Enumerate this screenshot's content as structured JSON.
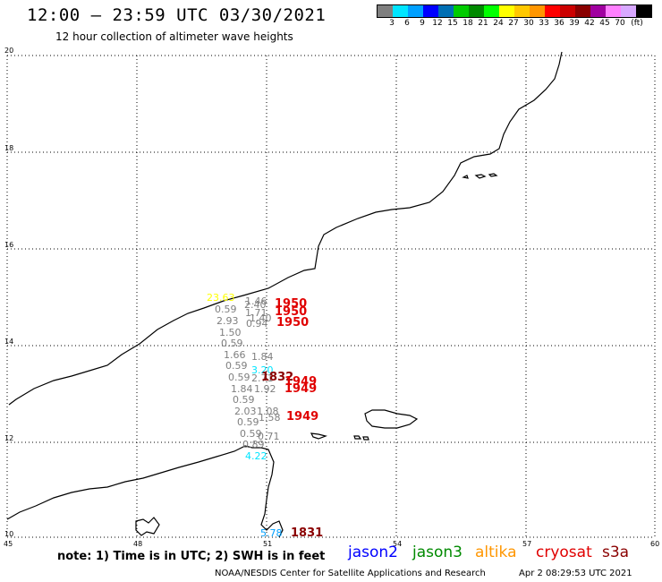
{
  "title": "12:00 – 23:59 UTC 03/30/2021",
  "subtitle": "12 hour collection of altimeter wave heights",
  "legend": {
    "colors": [
      "#7f7f7f",
      "#00e5ff",
      "#00a0ff",
      "#0000ff",
      "#006fb4",
      "#00cc00",
      "#008a00",
      "#00ff00",
      "#ffff00",
      "#ffc800",
      "#ff9600",
      "#ff0000",
      "#cc0000",
      "#8a0000",
      "#a000a0",
      "#ff80ff",
      "#d8a8ff",
      "#000000"
    ],
    "ticks": [
      "3",
      "6",
      "9",
      "12",
      "15",
      "18",
      "21",
      "24",
      "27",
      "30",
      "33",
      "36",
      "39",
      "42",
      "45",
      "70",
      "(ft)"
    ]
  },
  "axes": {
    "lat_labels": [
      "20",
      "18",
      "16",
      "14",
      "12",
      "10"
    ],
    "lon_labels": [
      "45",
      "48",
      "51",
      "54",
      "57",
      "60"
    ]
  },
  "observations": [
    {
      "text": "23.63",
      "color": "#ffff00"
    },
    {
      "text": "1.46",
      "color": "#7f7f7f"
    },
    {
      "text": "2.40",
      "color": "#7f7f7f"
    },
    {
      "text": "0.59",
      "color": "#7f7f7f"
    },
    {
      "text": "1.71",
      "color": "#7f7f7f"
    },
    {
      "text": "1.40",
      "color": "#7f7f7f"
    },
    {
      "text": "2.93",
      "color": "#7f7f7f"
    },
    {
      "text": "0.94",
      "color": "#7f7f7f"
    },
    {
      "text": "1.50",
      "color": "#7f7f7f"
    },
    {
      "text": "0.59",
      "color": "#7f7f7f"
    },
    {
      "text": "1.66",
      "color": "#7f7f7f"
    },
    {
      "text": "1.84",
      "color": "#7f7f7f"
    },
    {
      "text": "0.59",
      "color": "#7f7f7f"
    },
    {
      "text": "3.20",
      "color": "#00e5ff"
    },
    {
      "text": "0.59",
      "color": "#7f7f7f"
    },
    {
      "text": "2.71",
      "color": "#7f7f7f"
    },
    {
      "text": "1.84",
      "color": "#7f7f7f"
    },
    {
      "text": "1.92",
      "color": "#7f7f7f"
    },
    {
      "text": "0.59",
      "color": "#7f7f7f"
    },
    {
      "text": "2.03",
      "color": "#7f7f7f"
    },
    {
      "text": "1.08",
      "color": "#7f7f7f"
    },
    {
      "text": "0.59",
      "color": "#7f7f7f"
    },
    {
      "text": "1.58",
      "color": "#7f7f7f"
    },
    {
      "text": "0.59",
      "color": "#7f7f7f"
    },
    {
      "text": "0.71",
      "color": "#7f7f7f"
    },
    {
      "text": "0.89",
      "color": "#7f7f7f"
    },
    {
      "text": "4.22",
      "color": "#00e5ff"
    },
    {
      "text": "5.78",
      "color": "#00a0ff"
    }
  ],
  "times": [
    {
      "text": "1950",
      "color": "#e00000"
    },
    {
      "text": "1950",
      "color": "#e00000"
    },
    {
      "text": "1950",
      "color": "#e00000"
    },
    {
      "text": "1832",
      "color": "#8a0000"
    },
    {
      "text": "1949",
      "color": "#e00000"
    },
    {
      "text": "1949",
      "color": "#e00000"
    },
    {
      "text": "1949",
      "color": "#e00000"
    },
    {
      "text": "1831",
      "color": "#8a0000"
    }
  ],
  "note": "note: 1) Time is in UTC; 2) SWH is in feet",
  "missions": [
    {
      "name": "jason2",
      "color": "#0000ff"
    },
    {
      "name": "jason3",
      "color": "#008a00"
    },
    {
      "name": "altika",
      "color": "#ff9600"
    },
    {
      "name": "cryosat",
      "color": "#e00000"
    },
    {
      "name": "s3a",
      "color": "#8a0000"
    }
  ],
  "credit": "NOAA/NESDIS Center for Satellite Applications and Research",
  "timestamp": "Apr  2 08:29:53 UTC 2021"
}
